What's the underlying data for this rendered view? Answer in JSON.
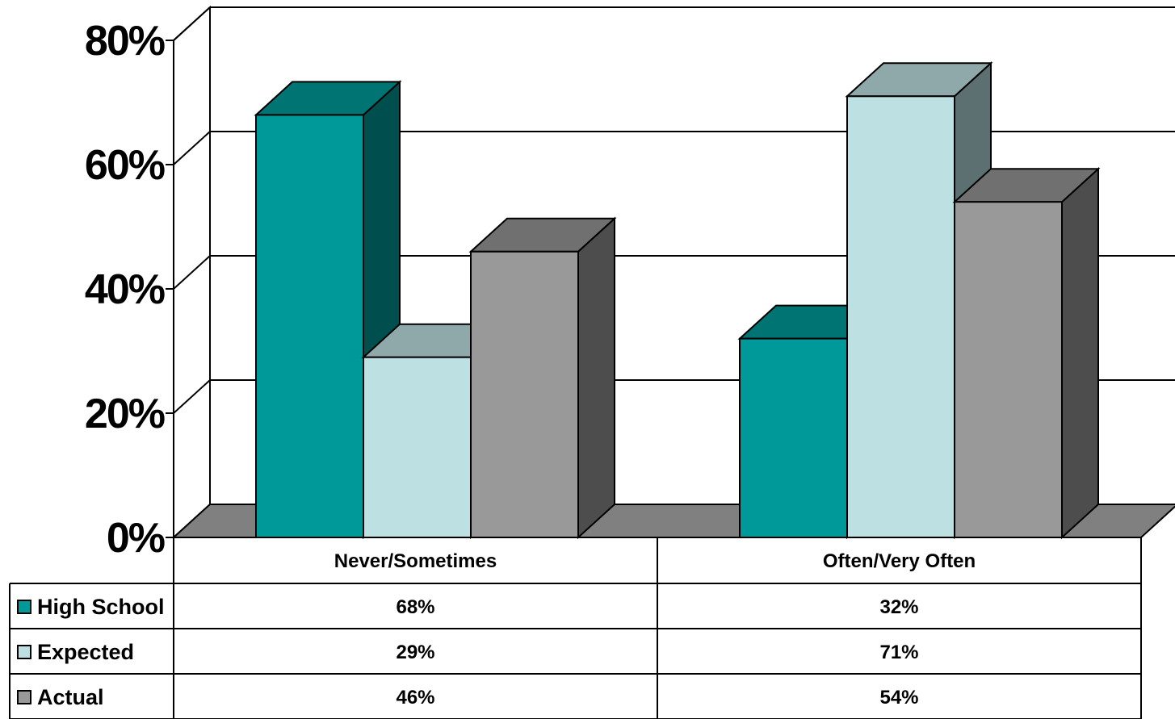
{
  "chart_data": {
    "type": "bar",
    "title": "",
    "xlabel": "",
    "ylabel": "",
    "ylim": [
      0,
      80
    ],
    "y_ticks": [
      "0%",
      "20%",
      "40%",
      "60%",
      "80%"
    ],
    "categories": [
      "Never/Sometimes",
      "Often/Very Often"
    ],
    "series": [
      {
        "name": "High School",
        "values": [
          68,
          32
        ],
        "labels": [
          "68%",
          "32%"
        ],
        "color": "#009999",
        "top_color": "#007373",
        "side_color": "#004f4f"
      },
      {
        "name": "Expected",
        "values": [
          29,
          71
        ],
        "labels": [
          "29%",
          "71%"
        ],
        "color": "#bde0e3",
        "top_color": "#8fa9ab",
        "side_color": "#5c7072"
      },
      {
        "name": "Actual",
        "values": [
          46,
          54
        ],
        "labels": [
          "46%",
          "54%"
        ],
        "color": "#999999",
        "top_color": "#707070",
        "side_color": "#4d4d4d"
      }
    ],
    "grid": true,
    "legend": "data-table-left",
    "style": "3d-column-with-data-table"
  }
}
